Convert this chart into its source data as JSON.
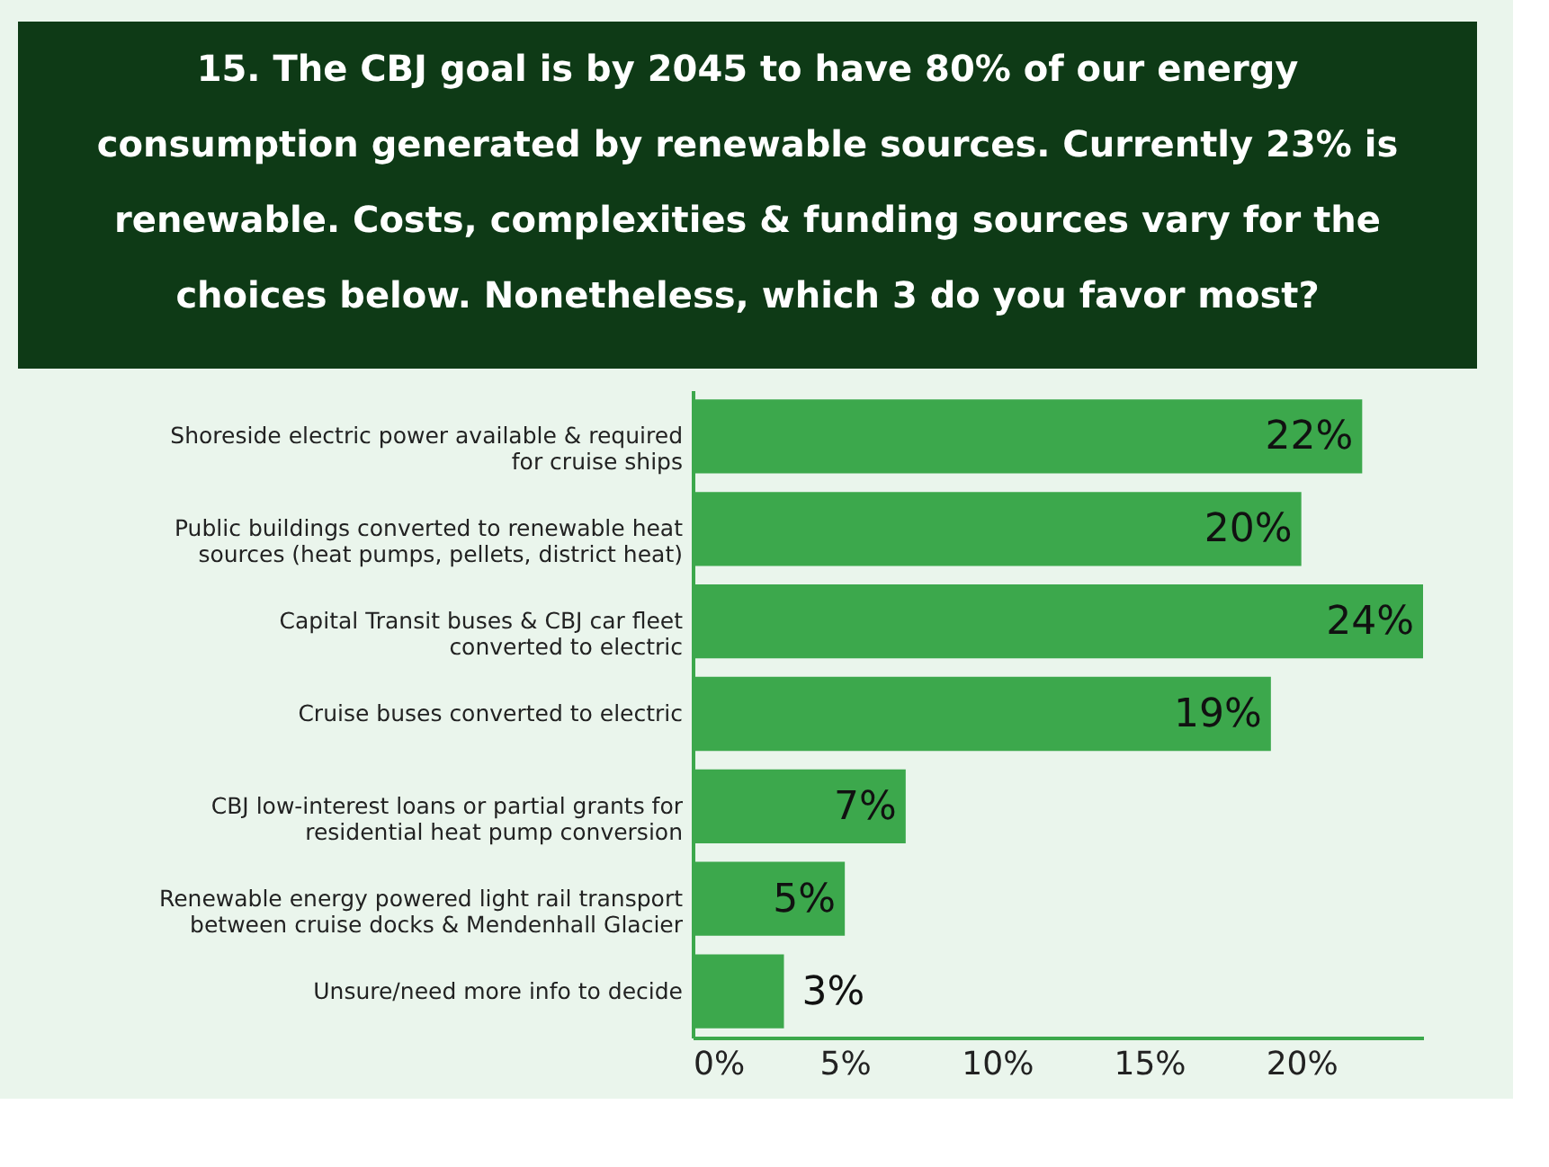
{
  "chart_data": {
    "type": "bar",
    "orientation": "horizontal",
    "title": "15. The CBJ goal is by 2045 to have 80% of our energy consumption generated by renewable sources. Currently 23% is renewable. Costs, complexities & funding sources vary for the choices below. Nonetheless, which 3 do you favor most?",
    "categories": [
      "Shoreside electric power available & required for cruise ships",
      "Public buildings converted to renewable heat sources (heat pumps, pellets, district heat)",
      "Capital Transit buses & CBJ car fleet converted to electric",
      "Cruise buses converted to electric",
      "CBJ low-interest loans or partial grants for residential heat pump conversion",
      "Renewable energy powered light rail transport between cruise docks & Mendenhall Glacier",
      "Unsure/need more info to decide"
    ],
    "values": [
      22,
      20,
      24,
      19,
      7,
      5,
      3
    ],
    "color": "#3ca84c",
    "value_labels": [
      "22%",
      "20%",
      "24%",
      "19%",
      "7%",
      "5%",
      "3%"
    ],
    "xlim": [
      0,
      24
    ],
    "xticks": [
      {
        "value": 0,
        "label": "0%"
      },
      {
        "value": 5,
        "label": "5%"
      },
      {
        "value": 10,
        "label": "10%"
      },
      {
        "value": 15,
        "label": "15%"
      },
      {
        "value": 20,
        "label": "20%"
      }
    ],
    "grid": false
  }
}
